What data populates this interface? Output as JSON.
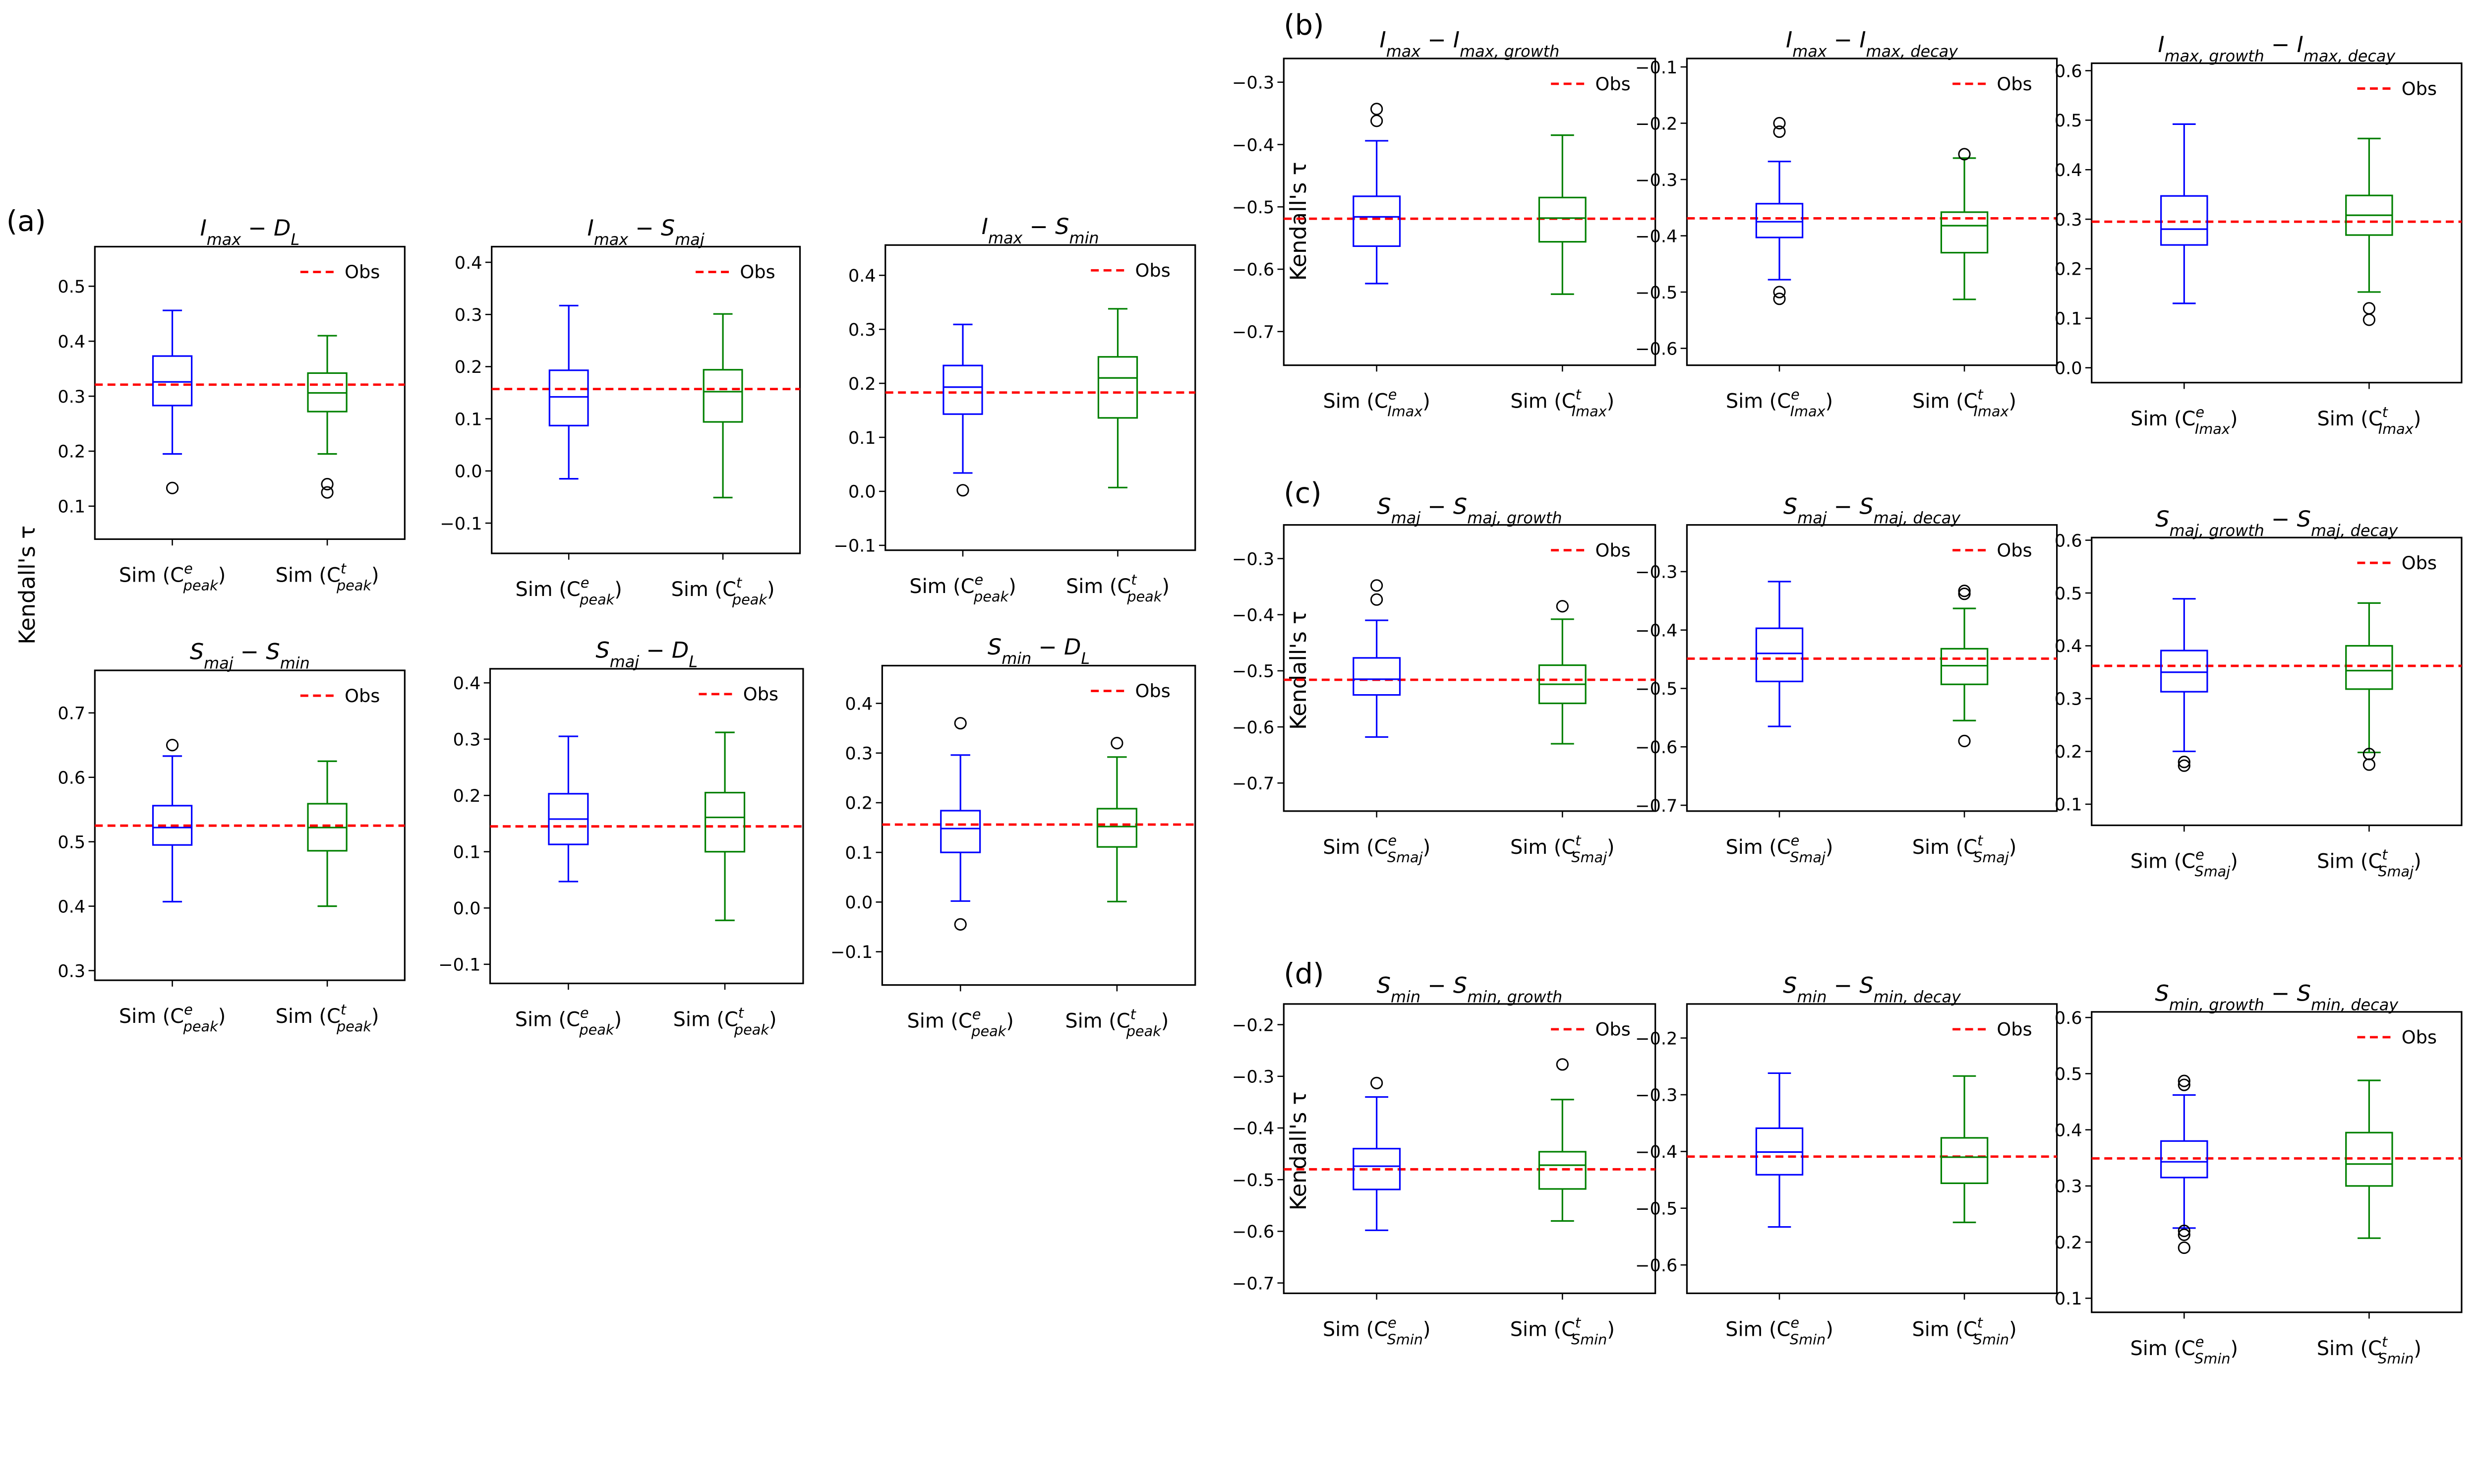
{
  "chart_data": {
    "type": "boxplot",
    "ylabel": "Kendall's τ",
    "legend_label": "Obs",
    "legend_placement": "top-right",
    "colors": {
      "sim_e": "#0000ff",
      "sim_t": "#008000",
      "obs": "#ff0000"
    },
    "groups": [
      {
        "label": "(a)",
        "show_ylabel": true,
        "panels": [
          {
            "title": [
              [
                "I",
                "max"
              ],
              [
                " − D",
                "L"
              ]
            ],
            "xsub": "peak",
            "ylim": [
              0.04,
              0.572
            ],
            "yticks": [
              "0.1",
              "0.2",
              "0.3",
              "0.4",
              "0.5"
            ],
            "obs": 0.321,
            "boxes": [
              {
                "whislo": 0.195,
                "q1": 0.283,
                "med": 0.326,
                "q3": 0.373,
                "whishi": 0.456,
                "fliers": [
                  0.133
                ]
              },
              {
                "whislo": 0.195,
                "q1": 0.272,
                "med": 0.306,
                "q3": 0.342,
                "whishi": 0.41,
                "fliers": [
                  0.14,
                  0.125
                ]
              }
            ]
          },
          {
            "title": [
              [
                "I",
                "max"
              ],
              [
                " − S",
                "maj"
              ]
            ],
            "xsub": "peak",
            "ylim": [
              -0.158,
              0.43
            ],
            "yticks": [
              "-0.1",
              "0.0",
              "0.1",
              "0.2",
              "0.3",
              "0.4"
            ],
            "obs": 0.157,
            "boxes": [
              {
                "whislo": -0.015,
                "q1": 0.087,
                "med": 0.142,
                "q3": 0.193,
                "whishi": 0.317,
                "fliers": []
              },
              {
                "whislo": -0.051,
                "q1": 0.094,
                "med": 0.152,
                "q3": 0.194,
                "whishi": 0.301,
                "fliers": []
              }
            ]
          },
          {
            "title": [
              [
                "I",
                "max"
              ],
              [
                " − S",
                "min"
              ]
            ],
            "xsub": "peak",
            "ylim": [
              -0.109,
              0.456
            ],
            "yticks": [
              "-0.1",
              "0.0",
              "0.1",
              "0.2",
              "0.3",
              "0.4"
            ],
            "obs": 0.183,
            "boxes": [
              {
                "whislo": 0.034,
                "q1": 0.143,
                "med": 0.193,
                "q3": 0.233,
                "whishi": 0.309,
                "fliers": [
                  0.002
                ]
              },
              {
                "whislo": 0.007,
                "q1": 0.136,
                "med": 0.21,
                "q3": 0.249,
                "whishi": 0.338,
                "fliers": []
              }
            ]
          },
          {
            "title": [
              [
                "S",
                "maj"
              ],
              [
                " − S",
                "min"
              ]
            ],
            "xsub": "peak",
            "ylim": [
              0.285,
              0.766
            ],
            "yticks": [
              "0.3",
              "0.4",
              "0.5",
              "0.6",
              "0.7"
            ],
            "obs": 0.525,
            "boxes": [
              {
                "whislo": 0.407,
                "q1": 0.495,
                "med": 0.522,
                "q3": 0.556,
                "whishi": 0.633,
                "fliers": [
                  0.65
                ]
              },
              {
                "whislo": 0.4,
                "q1": 0.486,
                "med": 0.522,
                "q3": 0.559,
                "whishi": 0.625,
                "fliers": []
              }
            ]
          },
          {
            "title": [
              [
                "S",
                "maj"
              ],
              [
                " − D",
                "L"
              ]
            ],
            "xsub": "peak",
            "ylim": [
              -0.134,
              0.425
            ],
            "yticks": [
              "-0.1",
              "0.0",
              "0.1",
              "0.2",
              "0.3",
              "0.4"
            ],
            "obs": 0.145,
            "boxes": [
              {
                "whislo": 0.047,
                "q1": 0.113,
                "med": 0.158,
                "q3": 0.203,
                "whishi": 0.305,
                "fliers": []
              },
              {
                "whislo": -0.022,
                "q1": 0.1,
                "med": 0.161,
                "q3": 0.205,
                "whishi": 0.312,
                "fliers": []
              }
            ]
          },
          {
            "title": [
              [
                "S",
                "min"
              ],
              [
                " − D",
                "L"
              ]
            ],
            "xsub": "peak",
            "ylim": [
              -0.167,
              0.476
            ],
            "yticks": [
              "-0.1",
              "0.0",
              "0.1",
              "0.2",
              "0.3",
              "0.4"
            ],
            "obs": 0.156,
            "boxes": [
              {
                "whislo": 0.002,
                "q1": 0.1,
                "med": 0.148,
                "q3": 0.184,
                "whishi": 0.296,
                "fliers": [
                  0.36,
                  -0.045
                ]
              },
              {
                "whislo": 0.001,
                "q1": 0.111,
                "med": 0.152,
                "q3": 0.188,
                "whishi": 0.292,
                "fliers": [
                  0.32
                ]
              }
            ]
          }
        ]
      },
      {
        "label": "(b)",
        "show_ylabel": true,
        "panels": [
          {
            "title": [
              [
                "I",
                "max"
              ],
              [
                " − I",
                "max, growth"
              ]
            ],
            "xsub": "Imax",
            "ylim": [
              -0.754,
              -0.262
            ],
            "yticks": [
              "-0.7",
              "-0.6",
              "-0.5",
              "-0.4",
              "-0.3"
            ],
            "obs": -0.519,
            "boxes": [
              {
                "whislo": -0.623,
                "q1": -0.563,
                "med": -0.516,
                "q3": -0.483,
                "whishi": -0.394,
                "fliers": [
                  -0.343,
                  -0.362
                ]
              },
              {
                "whislo": -0.64,
                "q1": -0.556,
                "med": -0.518,
                "q3": -0.485,
                "whishi": -0.385,
                "fliers": []
              }
            ]
          },
          {
            "title": [
              [
                "I",
                "max"
              ],
              [
                " − I",
                "max, decay"
              ]
            ],
            "xsub": "Imax",
            "ylim": [
              -0.63,
              -0.085
            ],
            "yticks": [
              "-0.6",
              "-0.5",
              "-0.4",
              "-0.3",
              "-0.2",
              "-0.1"
            ],
            "obs": -0.369,
            "boxes": [
              {
                "whislo": -0.478,
                "q1": -0.403,
                "med": -0.375,
                "q3": -0.343,
                "whishi": -0.268,
                "fliers": [
                  -0.2,
                  -0.215,
                  -0.5,
                  -0.512
                ]
              },
              {
                "whislo": -0.513,
                "q1": -0.43,
                "med": -0.382,
                "q3": -0.358,
                "whishi": -0.262,
                "fliers": [
                  -0.255
                ]
              }
            ]
          },
          {
            "title": [
              [
                "I",
                "max, growth"
              ],
              [
                " − I",
                "max, decay"
              ]
            ],
            "xsub": "Imax",
            "ylim": [
              -0.03,
              0.615
            ],
            "yticks": [
              "0.0",
              "0.1",
              "0.2",
              "0.3",
              "0.4",
              "0.5",
              "0.6"
            ],
            "obs": 0.295,
            "boxes": [
              {
                "whislo": 0.13,
                "q1": 0.248,
                "med": 0.28,
                "q3": 0.347,
                "whishi": 0.492,
                "fliers": []
              },
              {
                "whislo": 0.153,
                "q1": 0.268,
                "med": 0.308,
                "q3": 0.348,
                "whishi": 0.463,
                "fliers": [
                  0.12,
                  0.097
                ]
              }
            ]
          }
        ]
      },
      {
        "label": "(c)",
        "show_ylabel": true,
        "panels": [
          {
            "title": [
              [
                "S",
                "maj"
              ],
              [
                " − S",
                "maj, growth"
              ]
            ],
            "xsub": "Smaj",
            "ylim": [
              -0.75,
              -0.24
            ],
            "yticks": [
              "-0.7",
              "-0.6",
              "-0.5",
              "-0.4",
              "-0.3"
            ],
            "obs": -0.516,
            "boxes": [
              {
                "whislo": -0.618,
                "q1": -0.543,
                "med": -0.515,
                "q3": -0.477,
                "whishi": -0.41,
                "fliers": [
                  -0.348,
                  -0.373
                ]
              },
              {
                "whislo": -0.63,
                "q1": -0.558,
                "med": -0.524,
                "q3": -0.49,
                "whishi": -0.408,
                "fliers": [
                  -0.385
                ]
              }
            ]
          },
          {
            "title": [
              [
                "S",
                "maj"
              ],
              [
                " − S",
                "maj, decay"
              ]
            ],
            "xsub": "Smaj",
            "ylim": [
              -0.71,
              -0.22
            ],
            "yticks": [
              "-0.7",
              "-0.6",
              "-0.5",
              "-0.4",
              "-0.3"
            ],
            "obs": -0.449,
            "boxes": [
              {
                "whislo": -0.565,
                "q1": -0.488,
                "med": -0.44,
                "q3": -0.397,
                "whishi": -0.317,
                "fliers": []
              },
              {
                "whislo": -0.555,
                "q1": -0.493,
                "med": -0.461,
                "q3": -0.432,
                "whishi": -0.363,
                "fliers": [
                  -0.333,
                  -0.338,
                  -0.59
                ]
              }
            ]
          },
          {
            "title": [
              [
                "S",
                "maj, growth"
              ],
              [
                " − S",
                "maj, decay"
              ]
            ],
            "xsub": "Smaj",
            "ylim": [
              0.06,
              0.605
            ],
            "yticks": [
              "0.1",
              "0.2",
              "0.3",
              "0.4",
              "0.5",
              "0.6"
            ],
            "obs": 0.362,
            "boxes": [
              {
                "whislo": 0.2,
                "q1": 0.313,
                "med": 0.35,
                "q3": 0.391,
                "whishi": 0.489,
                "fliers": [
                  0.18,
                  0.173
                ]
              },
              {
                "whislo": 0.198,
                "q1": 0.318,
                "med": 0.353,
                "q3": 0.4,
                "whishi": 0.481,
                "fliers": [
                  0.195,
                  0.175
                ]
              }
            ]
          }
        ]
      },
      {
        "label": "(d)",
        "show_ylabel": true,
        "panels": [
          {
            "title": [
              [
                "S",
                "min"
              ],
              [
                " − S",
                "min, growth"
              ]
            ],
            "xsub": "Smin",
            "ylim": [
              -0.72,
              -0.16
            ],
            "yticks": [
              "-0.7",
              "-0.6",
              "-0.5",
              "-0.4",
              "-0.3",
              "-0.2"
            ],
            "obs": -0.48,
            "boxes": [
              {
                "whislo": -0.598,
                "q1": -0.519,
                "med": -0.474,
                "q3": -0.44,
                "whishi": -0.34,
                "fliers": [
                  -0.313
                ]
              },
              {
                "whislo": -0.58,
                "q1": -0.518,
                "med": -0.472,
                "q3": -0.446,
                "whishi": -0.345,
                "fliers": [
                  -0.277
                ]
              }
            ]
          },
          {
            "title": [
              [
                "S",
                "min"
              ],
              [
                " − S",
                "min, decay"
              ]
            ],
            "xsub": "Smin",
            "ylim": [
              -0.65,
              -0.14
            ],
            "yticks": [
              "-0.6",
              "-0.5",
              "-0.4",
              "-0.3",
              "-0.2"
            ],
            "obs": -0.409,
            "boxes": [
              {
                "whislo": -0.533,
                "q1": -0.441,
                "med": -0.401,
                "q3": -0.359,
                "whishi": -0.262,
                "fliers": []
              },
              {
                "whislo": -0.525,
                "q1": -0.456,
                "med": -0.41,
                "q3": -0.376,
                "whishi": -0.267,
                "fliers": []
              }
            ]
          },
          {
            "title": [
              [
                "S",
                "min, growth"
              ],
              [
                " − S",
                "min, decay"
              ]
            ],
            "xsub": "Smin",
            "ylim": [
              0.075,
              0.61
            ],
            "yticks": [
              "0.1",
              "0.2",
              "0.3",
              "0.4",
              "0.5",
              "0.6"
            ],
            "obs": 0.349,
            "boxes": [
              {
                "whislo": 0.225,
                "q1": 0.315,
                "med": 0.343,
                "q3": 0.38,
                "whishi": 0.462,
                "fliers": [
                  0.487,
                  0.48,
                  0.22,
                  0.213,
                  0.19
                ]
              },
              {
                "whislo": 0.207,
                "q1": 0.3,
                "med": 0.339,
                "q3": 0.395,
                "whishi": 0.488,
                "fliers": []
              }
            ]
          }
        ]
      }
    ],
    "xtick_prefix": "Sim (C",
    "xtick_suffix": ")",
    "xtick_sups": [
      "e",
      "t"
    ]
  }
}
